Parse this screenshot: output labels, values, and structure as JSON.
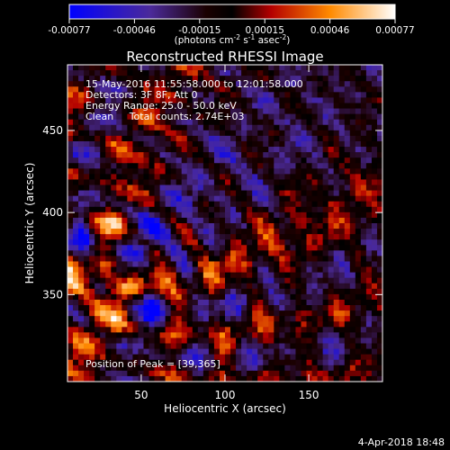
{
  "chart_data": {
    "type": "heatmap",
    "title": "Reconstructed RHESSI Image",
    "xlabel": "Heliocentric X (arcsec)",
    "ylabel": "Heliocentric Y (arcsec)",
    "xlim": [
      6,
      194
    ],
    "ylim": [
      297,
      490
    ],
    "xticks": [
      50,
      100,
      150
    ],
    "yticks": [
      350,
      400,
      450
    ],
    "colorbar": {
      "ticks": [
        "-0.00077",
        "-0.00046",
        "-0.00015",
        "0.00015",
        "0.00046",
        "0.00077"
      ],
      "unit_base": "(photons cm",
      "unit_exp1": "-2",
      "unit_mid": " s",
      "unit_exp2": "-1",
      "unit_mid2": " asec",
      "unit_exp3": "-2",
      "unit_end": ")",
      "range": [
        -0.00077,
        0.00077
      ]
    },
    "annotations": [
      "15-May-2016 11:55:58.000 to 12:01:58.000",
      "Detectors: 3F 8F, Att 0",
      "Energy Range: 25.0 - 50.0 keV",
      "Clean     Total counts: 2.74E+03"
    ],
    "flux_position": "Position of Peak = [39,365]",
    "peak": [
      39,
      365
    ]
  },
  "footer": {
    "timestamp": "4-Apr-2018 18:48"
  }
}
